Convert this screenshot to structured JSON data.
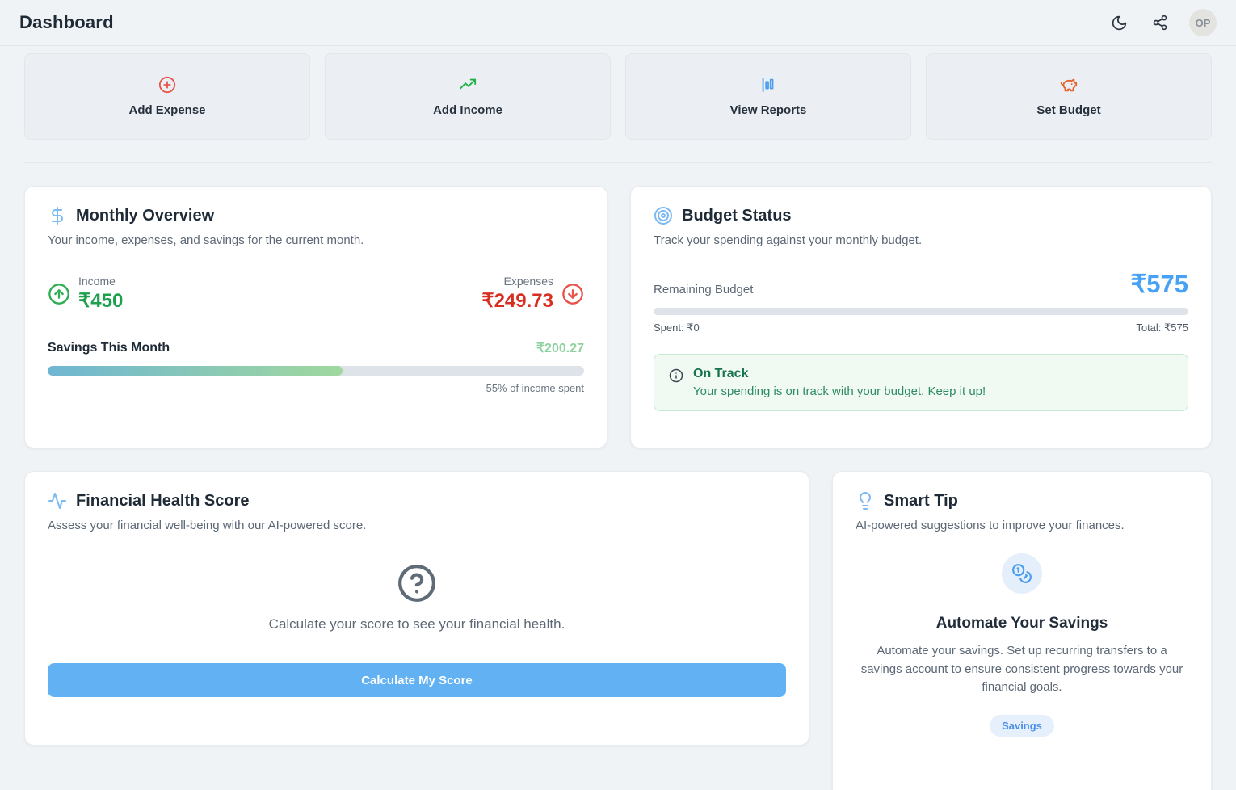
{
  "header": {
    "title": "Dashboard",
    "avatar_initials": "OP"
  },
  "actions": [
    {
      "label": "Add Expense",
      "icon": "plus-circle-icon",
      "color": "#e8544a"
    },
    {
      "label": "Add Income",
      "icon": "trending-up-icon",
      "color": "#22b04c"
    },
    {
      "label": "View Reports",
      "icon": "bar-chart-icon",
      "color": "#4a9df0"
    },
    {
      "label": "Set Budget",
      "icon": "piggy-bank-icon",
      "color": "#e8622b"
    }
  ],
  "monthly_overview": {
    "title": "Monthly Overview",
    "subtitle": "Your income, expenses, and savings for the current month.",
    "income_label": "Income",
    "income_value": "₹450",
    "expenses_label": "Expenses",
    "expenses_value": "₹249.73",
    "savings_label": "Savings This Month",
    "savings_value": "₹200.27",
    "savings_fill_percent": 55,
    "spent_note": "55% of income spent"
  },
  "budget_status": {
    "title": "Budget Status",
    "subtitle": "Track your spending against your monthly budget.",
    "remaining_label": "Remaining Budget",
    "remaining_value": "₹575",
    "progress_percent": 0,
    "spent_text": "Spent: ₹0",
    "total_text": "Total: ₹575",
    "alert_title": "On Track",
    "alert_message": "Your spending is on track with your budget. Keep it up!"
  },
  "financial_health": {
    "title": "Financial Health Score",
    "subtitle": "Assess your financial well-being with our AI-powered score.",
    "empty_text": "Calculate your score to see your financial health.",
    "button_label": "Calculate My Score"
  },
  "smart_tip": {
    "title": "Smart Tip",
    "subtitle": "AI-powered suggestions to improve your finances.",
    "tip_title": "Automate Your Savings",
    "tip_body": "Automate your savings. Set up recurring transfers to a savings account to ensure consistent progress towards your financial goals.",
    "badge": "Savings"
  },
  "colors": {
    "accent_blue": "#47a2f5",
    "income_green": "#1ca04d",
    "expense_red": "#d92f23",
    "savings_light_green": "#8fd2a0",
    "progress_gradient_start": "#6fb6d2",
    "progress_gradient_end": "#a0d89e",
    "alert_green_bg": "#f0faf2",
    "button_blue": "#62b1f2"
  }
}
